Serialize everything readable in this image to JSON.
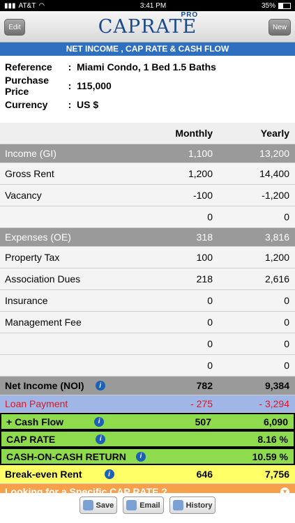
{
  "status": {
    "carrier": "AT&T",
    "time": "3:41 PM",
    "battery": "35%",
    "battery_level": 0.35
  },
  "nav": {
    "edit": "Edit",
    "logo": "CAPRATE",
    "pro": "PRO",
    "new": "New"
  },
  "banner": "NET INCOME , CAP RATE & CASH FLOW",
  "info": [
    {
      "label": "Reference",
      "value": "Miami Condo, 1 Bed 1.5 Baths"
    },
    {
      "label": "Purchase Price",
      "value": "115,000"
    },
    {
      "label": "Currency",
      "value": "US $"
    }
  ],
  "table": {
    "header": {
      "monthly": "Monthly",
      "yearly": "Yearly"
    },
    "income": {
      "label": "Income (GI)",
      "monthly": "1,100",
      "yearly": "13,200"
    },
    "income_rows": [
      {
        "label": "Gross Rent",
        "monthly": "1,200",
        "yearly": "14,400"
      },
      {
        "label": "Vacancy",
        "monthly": "-100",
        "yearly": "-1,200"
      },
      {
        "label": "",
        "monthly": "0",
        "yearly": "0"
      }
    ],
    "expenses": {
      "label": "Expenses (OE)",
      "monthly": "318",
      "yearly": "3,816"
    },
    "expense_rows": [
      {
        "label": "Property Tax",
        "monthly": "100",
        "yearly": "1,200"
      },
      {
        "label": "Association Dues",
        "monthly": "218",
        "yearly": "2,616"
      },
      {
        "label": "Insurance",
        "monthly": "0",
        "yearly": "0"
      },
      {
        "label": "Management Fee",
        "monthly": "0",
        "yearly": "0"
      },
      {
        "label": "",
        "monthly": "0",
        "yearly": "0"
      },
      {
        "label": "",
        "monthly": "0",
        "yearly": "0"
      }
    ],
    "noi": {
      "label": "Net Income (NOI)",
      "monthly": "782",
      "yearly": "9,384"
    },
    "loan": {
      "label": "Loan Payment",
      "monthly": "- 275",
      "yearly": "- 3,294"
    },
    "cashflow": {
      "label": "+ Cash Flow",
      "monthly": "507",
      "yearly": "6,090"
    },
    "caprate": {
      "label": "CAP RATE",
      "yearly": "8.16 %"
    },
    "coc": {
      "label": "CASH-ON-CASH RETURN",
      "yearly": "10.59 %"
    },
    "breakeven": {
      "label": "Break-even Rent",
      "monthly": "646",
      "yearly": "7,756"
    },
    "specific": {
      "label": "Looking for a Specific CAP RATE ?"
    }
  },
  "toolbar": {
    "save": "Save",
    "email": "Email",
    "history": "History"
  }
}
